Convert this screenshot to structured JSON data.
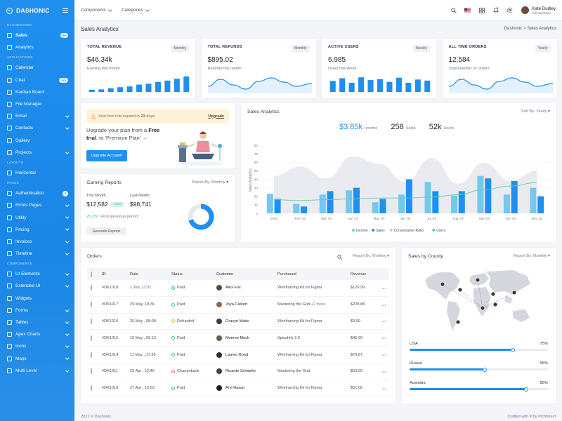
{
  "brand": {
    "name": "DASHONIC"
  },
  "sidebar": {
    "sections": [
      {
        "title": "DASHBOARDS",
        "items": [
          {
            "label": "Sales",
            "badge": "5+",
            "active": true
          },
          {
            "label": "Analytics"
          }
        ]
      },
      {
        "title": "APPLICATIONS",
        "items": [
          {
            "label": "Calendar"
          },
          {
            "label": "Chat",
            "badge": "Hot"
          },
          {
            "label": "Kanban Board"
          },
          {
            "label": "File Manager"
          },
          {
            "label": "Email",
            "chevron": true
          },
          {
            "label": "Contacts",
            "chevron": true
          },
          {
            "label": "Gallery"
          },
          {
            "label": "Projects",
            "chevron": true
          }
        ]
      },
      {
        "title": "LAYOUTS",
        "items": [
          {
            "label": "Horizontal"
          }
        ]
      },
      {
        "title": "PAGES",
        "items": [
          {
            "label": "Authentication",
            "badge": "8"
          },
          {
            "label": "Errors Pages",
            "chevron": true
          },
          {
            "label": "Utility",
            "chevron": true
          },
          {
            "label": "Pricing",
            "chevron": true
          },
          {
            "label": "Invoices",
            "chevron": true
          },
          {
            "label": "Timeline",
            "chevron": true
          }
        ]
      },
      {
        "title": "COMPONENTS",
        "items": [
          {
            "label": "UI Elements",
            "chevron": true
          },
          {
            "label": "Extended UI",
            "chevron": true
          },
          {
            "label": "Widgets"
          },
          {
            "label": "Forms",
            "chevron": true
          },
          {
            "label": "Tables",
            "chevron": true
          },
          {
            "label": "Apex Charts",
            "chevron": true
          },
          {
            "label": "Icons",
            "chevron": true
          },
          {
            "label": "Maps",
            "chevron": true
          },
          {
            "label": "Multi Level",
            "chevron": true
          }
        ]
      }
    ]
  },
  "topbar": {
    "menus": [
      "Components",
      "Categories"
    ],
    "user": {
      "name": "Kate Dudley",
      "role": "Administrator"
    }
  },
  "page": {
    "title": "Sales Analytics",
    "breadcrumb": "Dashonic  >  Sales Analytics"
  },
  "stats": [
    {
      "label": "TOTAL REVENUE",
      "period": "Monthly",
      "value": "$46.34k",
      "sub": "Earning this month",
      "viz": "bars",
      "levels": [
        0.12,
        0.14,
        0.2,
        0.26,
        0.3,
        0.4,
        0.45,
        0.55,
        0.62,
        0.72,
        0.85
      ]
    },
    {
      "label": "TOTAL REFUNDS",
      "period": "Monthly",
      "value": "$895.02",
      "sub": "Refunds this month",
      "viz": "wave"
    },
    {
      "label": "ACTIVE USERS",
      "period": "Weekly",
      "value": "6,985",
      "sub": "Users this Week",
      "viz": "bars",
      "levels": [
        0.6,
        0.75,
        0.5,
        0.8,
        0.65,
        0.7,
        0.55,
        0.78,
        0.5,
        0.68,
        0.62
      ]
    },
    {
      "label": "ALL TIME ORDERS",
      "period": "Yearly",
      "value": "12,584",
      "sub": "Total Number of Orders",
      "viz": "wave"
    }
  ],
  "upgrade": {
    "trial_pre": "Your free trial expired in ",
    "trial_days": "21",
    "trial_post": " days.",
    "trial_link": "Upgrade",
    "text_a": "Upgrade your plan from a ",
    "text_b": "Free trial",
    "text_c": ", to 'Premium Plan'",
    "button": "Upgrade Account!"
  },
  "earning": {
    "title": "Earning Reports",
    "report_label": "Report By:",
    "report_value": "Monthly",
    "this_month_label": "This Month",
    "this_month_value": "$12,582",
    "this_month_badge": "+15%",
    "last_month_label": "Last Month",
    "last_month_value": "$98,741",
    "growth": "25.2%",
    "growth_text": "From previous period",
    "button": "Generate Reports",
    "donut_fill": 0.7
  },
  "sales_analytics": {
    "title": "Sales Analytics",
    "sort_label": "Sort By:",
    "sort_value": "Yearly",
    "kpis": [
      {
        "value": "$3.85k",
        "label": "Income",
        "color": "#1f8ff0"
      },
      {
        "value": "258",
        "label": "Sales",
        "color": "#212529"
      },
      {
        "value": "52k",
        "label": "Users",
        "color": "#212529"
      }
    ]
  },
  "chart_data": {
    "type": "bar",
    "ylabel": "Sales Analytics",
    "ylim": [
      0,
      80
    ],
    "yticks": [
      "0",
      "10",
      "20",
      "30",
      "40",
      "50",
      "60",
      "70",
      "80"
    ],
    "categories": [
      "2003",
      "Feb '03",
      "Mar '03",
      "Apr '03",
      "May '03",
      "Jun '03",
      "Jul '03",
      "Aug '03",
      "Sep '03",
      "Oct '03",
      "Nov '03"
    ],
    "series": [
      {
        "name": "Income",
        "type": "bar",
        "color": "#74c8ee",
        "values": [
          23,
          11,
          22,
          27,
          13,
          22,
          37,
          21,
          44,
          22,
          30
        ]
      },
      {
        "name": "Sales",
        "type": "bar",
        "color": "#1f8ff0",
        "values": [
          17,
          8,
          26,
          30,
          17,
          40,
          26,
          26,
          41,
          38,
          20
        ]
      },
      {
        "name": "Conversation Ratio",
        "type": "area",
        "color": "#e3e6ed",
        "values": [
          44,
          55,
          41,
          67,
          58,
          37,
          65,
          35,
          59,
          38,
          50
        ]
      },
      {
        "name": "Users",
        "type": "line",
        "color": "#5fd09e",
        "values": [
          16,
          15,
          16,
          17,
          18,
          18,
          19,
          22,
          28,
          32,
          36
        ]
      }
    ],
    "legend_position": "bottom"
  },
  "orders": {
    "title": "Orders",
    "report_label": "Report By:",
    "report_value": "Monthly",
    "columns": [
      "ID",
      "Date",
      "Status",
      "Customer",
      "Purchased",
      "Revenue"
    ],
    "rows": [
      {
        "id": "#DK1018",
        "date": "1 Jun, 11:21",
        "status": "Paid",
        "status_color": "#34c38f",
        "customer": "Alex Fox",
        "avatar_color": "#5a4a42",
        "purchased": "Wireframing Kit for Figma",
        "revenue": "$129.99"
      },
      {
        "id": "#DK1017",
        "date": "29 May, 18:36",
        "status": "Paid",
        "status_color": "#34c38f",
        "customer": "Joya Calvert",
        "avatar_color": "#8c6a55",
        "purchased": "Mastering the Grid ",
        "extra": "+2 more",
        "revenue": "$228.88"
      },
      {
        "id": "#DK1016",
        "date": "25 May , 08:09",
        "status": "Refunded",
        "status_color": "#f1b44c",
        "customer": "Gracyn Make",
        "avatar_color": "#3d3d3d",
        "purchased": "Wireframing Kit for Figma",
        "revenue": "$9.99"
      },
      {
        "id": "#DK1015",
        "date": "15 May , 09:13",
        "status": "Paid",
        "status_color": "#34c38f",
        "customer": "Monroe Mock",
        "avatar_color": "#6d5c54",
        "purchased": "Spiashify 2.0",
        "revenue": "$45.99"
      },
      {
        "id": "#DK1014",
        "date": "11 May , 17:35",
        "status": "Paid",
        "status_color": "#34c38f",
        "customer": "Lauren Bond",
        "avatar_color": "#2f2f2f",
        "purchased": "Wireframing Kit for Figma",
        "revenue": "$75.87"
      },
      {
        "id": "#DK1011",
        "date": "29 Apr , 12:46",
        "status": "Changeback",
        "status_color": "#f46a6a",
        "customer": "Ricardo Schaefer",
        "avatar_color": "#4a3f3a",
        "purchased": "Mastering the Grid",
        "revenue": "$63.99"
      },
      {
        "id": "#DK1010",
        "date": "27 Apr , 10:53",
        "status": "Paid",
        "status_color": "#34c38f",
        "customer": "Arvi Hasan",
        "avatar_color": "#1f1f1f",
        "purchased": "Wireframing Kit for Figma",
        "revenue": "$51.00"
      }
    ]
  },
  "county": {
    "title": "Sales by County",
    "report_label": "Report By:",
    "report_value": "Monthly",
    "rows": [
      {
        "name": "USA",
        "pct": "75%",
        "level": 0.75
      },
      {
        "name": "Russia",
        "pct": "55%",
        "level": 0.55
      },
      {
        "name": "Australia",
        "pct": "85%",
        "level": 0.85
      }
    ]
  },
  "footer": {
    "left": "2021 © Dashonic.",
    "right_a": "Crafted with ",
    "right_b": " by Pichforest"
  }
}
